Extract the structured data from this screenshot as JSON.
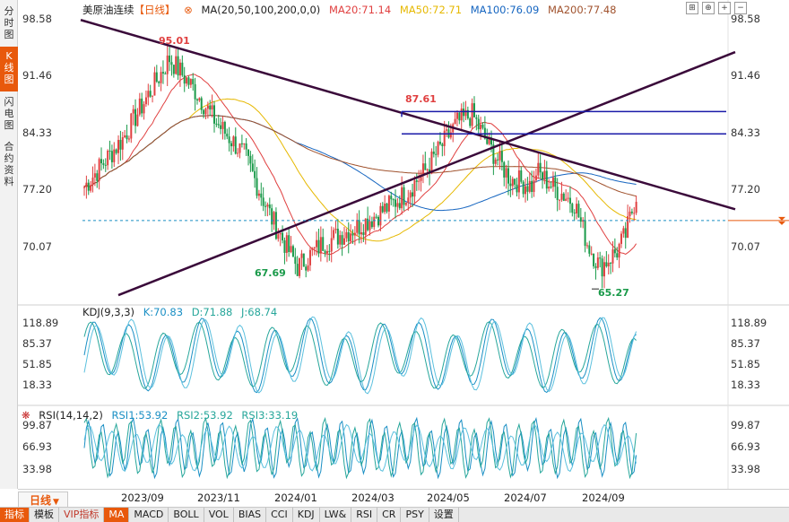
{
  "side_tabs": [
    {
      "label": "分时图",
      "active": false
    },
    {
      "label": "K线图",
      "active": true
    },
    {
      "label": "闪电图",
      "active": false
    },
    {
      "label": "合约资料",
      "active": false
    }
  ],
  "main_legend": {
    "title": "美原油连续",
    "period": "【日线】",
    "ma_params": "MA(20,50,100,200,0,0)",
    "ma20": "MA20:71.14",
    "ma50": "MA50:72.71",
    "ma100": "MA100:76.09",
    "ma200": "MA200:77.48"
  },
  "kdj_legend": {
    "name": "KDJ(9,3,3)",
    "k": "K:70.83",
    "d": "D:71.88",
    "j": "J:68.74"
  },
  "rsi_legend": {
    "name": "RSI(14,14,2)",
    "rsi1": "RSI1:53.92",
    "rsi2": "RSI2:53.92",
    "rsi3": "RSI3:33.19"
  },
  "price_axis": [
    "98.58",
    "91.46",
    "84.33",
    "77.20",
    "70.07"
  ],
  "kdj_axis": [
    "118.89",
    "85.37",
    "51.85",
    "18.33"
  ],
  "rsi_axis": [
    "99.87",
    "66.93",
    "33.98"
  ],
  "annotations": {
    "high1": "95.01",
    "high2": "87.61",
    "low1": "67.69",
    "low2": "65.27"
  },
  "period_button": "日线",
  "dates": [
    "2023/09",
    "2023/11",
    "2024/01",
    "2024/03",
    "2024/05",
    "2024/07",
    "2024/09"
  ],
  "bottom_tabs": [
    "指标",
    "模板",
    "VIP指标",
    "MA",
    "MACD",
    "BOLL",
    "VOL",
    "BIAS",
    "CCI",
    "KDJ",
    "LW&",
    "RSI",
    "CR",
    "PSY",
    "设置"
  ],
  "colors": {
    "up": "#e04040",
    "down": "#1a9a4a",
    "ma20": "#e04040",
    "ma50": "#e6b800",
    "ma100": "#1565c0",
    "ma200": "#a0522d",
    "accent": "#e8590c",
    "trendline": "#3a0a3a",
    "hline": "#1a1aa8"
  },
  "chart_data": {
    "type": "candlestick",
    "title": "美原油连续",
    "key_levels": {
      "high_2023_09": 95.01,
      "high_2024_04": 87.61,
      "low_2023_12": 67.69,
      "low_2024_09": 65.27
    },
    "y_ticks": [
      98.58,
      91.46,
      84.33,
      77.2,
      70.07
    ],
    "moving_averages": {
      "MA20": 71.14,
      "MA50": 72.71,
      "MA100": 76.09,
      "MA200": 77.48
    },
    "kdj": {
      "K": 70.83,
      "D": 71.88,
      "J": 68.74
    },
    "rsi": {
      "RSI1": 53.92,
      "RSI2": 53.92,
      "RSI3": 33.19
    }
  }
}
